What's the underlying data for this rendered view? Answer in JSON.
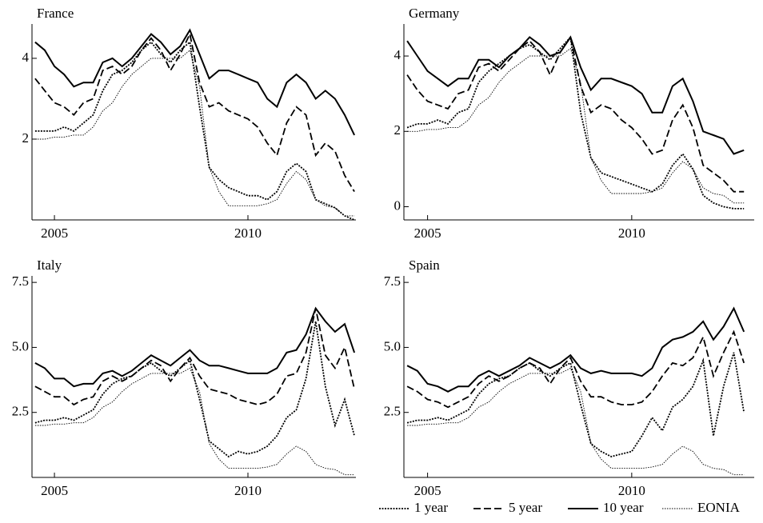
{
  "chart_data": [
    {
      "type": "line",
      "title": "France",
      "x": [
        2004.5,
        2004.75,
        2005,
        2005.25,
        2005.5,
        2005.75,
        2006,
        2006.25,
        2006.5,
        2006.75,
        2007,
        2007.25,
        2007.5,
        2007.75,
        2008,
        2008.25,
        2008.5,
        2008.75,
        2009,
        2009.25,
        2009.5,
        2009.75,
        2010,
        2010.25,
        2010.5,
        2010.75,
        2011,
        2011.25,
        2011.5,
        2011.75,
        2012,
        2012.25,
        2012.5,
        2012.75
      ],
      "xlim": [
        2004.42,
        2012.79
      ],
      "xticks": [
        2005,
        2010
      ],
      "ylim": [
        0,
        4.85
      ],
      "yticks": [
        2,
        4
      ],
      "series": [
        {
          "color": "#000",
          "style": "dotted",
          "values": [
            2.2,
            2.2,
            2.2,
            2.3,
            2.2,
            2.4,
            2.6,
            3.2,
            3.6,
            3.7,
            3.9,
            4.2,
            4.4,
            4.1,
            3.9,
            4.2,
            4.4,
            2.8,
            1.3,
            1.0,
            0.8,
            0.7,
            0.6,
            0.6,
            0.5,
            0.7,
            1.2,
            1.4,
            1.2,
            0.5,
            0.4,
            0.3,
            0.1,
            0.0
          ]
        },
        {
          "color": "#000",
          "style": "dashed",
          "values": [
            3.5,
            3.2,
            2.9,
            2.8,
            2.6,
            2.9,
            3.0,
            3.7,
            3.8,
            3.6,
            3.8,
            4.2,
            4.5,
            4.2,
            3.7,
            4.1,
            4.6,
            3.4,
            2.8,
            2.9,
            2.7,
            2.6,
            2.5,
            2.3,
            1.9,
            1.6,
            2.4,
            2.8,
            2.6,
            1.6,
            1.9,
            1.7,
            1.1,
            0.7
          ]
        },
        {
          "color": "#000",
          "style": "solid",
          "values": [
            4.4,
            4.2,
            3.8,
            3.6,
            3.3,
            3.4,
            3.4,
            3.9,
            4.0,
            3.8,
            4.0,
            4.3,
            4.6,
            4.4,
            4.1,
            4.3,
            4.7,
            4.1,
            3.5,
            3.7,
            3.7,
            3.6,
            3.5,
            3.4,
            3.0,
            2.8,
            3.4,
            3.6,
            3.4,
            3.0,
            3.2,
            3.0,
            2.6,
            2.1
          ]
        },
        {
          "color": "#000",
          "style": "fine-dotted",
          "values": [
            2.0,
            2.0,
            2.05,
            2.05,
            2.1,
            2.1,
            2.3,
            2.7,
            2.9,
            3.3,
            3.6,
            3.8,
            4.0,
            4.0,
            4.0,
            4.0,
            4.2,
            3.3,
            1.3,
            0.7,
            0.35,
            0.35,
            0.35,
            0.35,
            0.4,
            0.5,
            0.9,
            1.2,
            1.0,
            0.5,
            0.35,
            0.3,
            0.1,
            0.1
          ]
        }
      ]
    },
    {
      "type": "line",
      "title": "Germany",
      "x": [
        2004.5,
        2004.75,
        2005,
        2005.25,
        2005.5,
        2005.75,
        2006,
        2006.25,
        2006.5,
        2006.75,
        2007,
        2007.25,
        2007.5,
        2007.75,
        2008,
        2008.25,
        2008.5,
        2008.75,
        2009,
        2009.25,
        2009.5,
        2009.75,
        2010,
        2010.25,
        2010.5,
        2010.75,
        2011,
        2011.25,
        2011.5,
        2011.75,
        2012,
        2012.25,
        2012.5,
        2012.75
      ],
      "xlim": [
        2004.42,
        2013.0
      ],
      "xticks": [
        2005,
        2010
      ],
      "ylim": [
        -0.35,
        4.85
      ],
      "yticks": [
        0,
        2,
        4
      ],
      "series": [
        {
          "color": "#000",
          "style": "dotted",
          "values": [
            2.1,
            2.2,
            2.2,
            2.3,
            2.2,
            2.5,
            2.6,
            3.3,
            3.6,
            3.8,
            4.0,
            4.2,
            4.3,
            4.1,
            3.9,
            4.2,
            4.5,
            2.5,
            1.3,
            0.9,
            0.8,
            0.7,
            0.6,
            0.5,
            0.4,
            0.6,
            1.1,
            1.4,
            1.0,
            0.3,
            0.1,
            0.0,
            -0.05,
            -0.05
          ]
        },
        {
          "color": "#000",
          "style": "dashed",
          "values": [
            3.5,
            3.1,
            2.8,
            2.7,
            2.6,
            3.0,
            3.1,
            3.7,
            3.8,
            3.6,
            3.9,
            4.2,
            4.4,
            4.1,
            3.5,
            4.1,
            4.5,
            3.2,
            2.5,
            2.7,
            2.6,
            2.3,
            2.1,
            1.8,
            1.4,
            1.5,
            2.3,
            2.7,
            2.1,
            1.1,
            0.9,
            0.7,
            0.4,
            0.4
          ]
        },
        {
          "color": "#000",
          "style": "solid",
          "values": [
            4.4,
            4.0,
            3.6,
            3.4,
            3.2,
            3.4,
            3.4,
            3.9,
            3.9,
            3.7,
            4.0,
            4.2,
            4.5,
            4.3,
            4.0,
            4.1,
            4.5,
            3.7,
            3.1,
            3.4,
            3.4,
            3.3,
            3.2,
            3.0,
            2.5,
            2.5,
            3.2,
            3.4,
            2.8,
            2.0,
            1.9,
            1.8,
            1.4,
            1.5
          ]
        },
        {
          "color": "#000",
          "style": "fine-dotted",
          "values": [
            2.0,
            2.0,
            2.05,
            2.05,
            2.1,
            2.1,
            2.3,
            2.7,
            2.9,
            3.3,
            3.6,
            3.8,
            4.0,
            4.0,
            4.0,
            4.0,
            4.2,
            3.3,
            1.3,
            0.7,
            0.35,
            0.35,
            0.35,
            0.35,
            0.4,
            0.5,
            0.9,
            1.2,
            1.0,
            0.5,
            0.35,
            0.3,
            0.1,
            0.1
          ]
        }
      ]
    },
    {
      "type": "line",
      "title": "Italy",
      "x": [
        2004.5,
        2004.75,
        2005,
        2005.25,
        2005.5,
        2005.75,
        2006,
        2006.25,
        2006.5,
        2006.75,
        2007,
        2007.25,
        2007.5,
        2007.75,
        2008,
        2008.25,
        2008.5,
        2008.75,
        2009,
        2009.25,
        2009.5,
        2009.75,
        2010,
        2010.25,
        2010.5,
        2010.75,
        2011,
        2011.25,
        2011.5,
        2011.75,
        2012,
        2012.25,
        2012.5,
        2012.75
      ],
      "xlim": [
        2004.42,
        2012.79
      ],
      "xticks": [
        2005,
        2010
      ],
      "ylim": [
        0,
        7.75
      ],
      "yticks": [
        2.5,
        {
          "value": 5,
          "label": "5.0"
        },
        7.5
      ],
      "series": [
        {
          "color": "#000",
          "style": "dotted",
          "values": [
            2.1,
            2.2,
            2.2,
            2.3,
            2.2,
            2.4,
            2.6,
            3.2,
            3.6,
            3.8,
            3.9,
            4.2,
            4.4,
            4.1,
            3.9,
            4.2,
            4.5,
            3.0,
            1.4,
            1.1,
            0.8,
            1.0,
            0.9,
            1.0,
            1.2,
            1.6,
            2.3,
            2.6,
            3.8,
            6.0,
            3.5,
            2.0,
            3.0,
            1.6
          ]
        },
        {
          "color": "#000",
          "style": "dashed",
          "values": [
            3.5,
            3.3,
            3.1,
            3.1,
            2.8,
            3.0,
            3.1,
            3.7,
            3.9,
            3.7,
            3.9,
            4.2,
            4.5,
            4.3,
            3.7,
            4.2,
            4.6,
            3.9,
            3.4,
            3.3,
            3.2,
            3.0,
            2.9,
            2.8,
            2.9,
            3.2,
            3.9,
            4.0,
            4.8,
            6.5,
            4.7,
            4.2,
            5.0,
            3.4
          ]
        },
        {
          "color": "#000",
          "style": "solid",
          "values": [
            4.4,
            4.2,
            3.8,
            3.8,
            3.5,
            3.6,
            3.6,
            4.0,
            4.1,
            3.9,
            4.1,
            4.4,
            4.7,
            4.5,
            4.3,
            4.6,
            4.9,
            4.5,
            4.3,
            4.3,
            4.2,
            4.1,
            4.0,
            4.0,
            4.0,
            4.2,
            4.8,
            4.9,
            5.5,
            6.5,
            6.0,
            5.6,
            5.9,
            4.8
          ]
        },
        {
          "color": "#000",
          "style": "fine-dotted",
          "values": [
            2.0,
            2.0,
            2.05,
            2.05,
            2.1,
            2.1,
            2.3,
            2.7,
            2.9,
            3.3,
            3.6,
            3.8,
            4.0,
            4.0,
            4.0,
            4.0,
            4.2,
            3.3,
            1.3,
            0.7,
            0.35,
            0.35,
            0.35,
            0.35,
            0.4,
            0.5,
            0.9,
            1.2,
            1.0,
            0.5,
            0.35,
            0.3,
            0.1,
            0.1
          ]
        }
      ]
    },
    {
      "type": "line",
      "title": "Spain",
      "legend": "bottom-right",
      "x": [
        2004.5,
        2004.75,
        2005,
        2005.25,
        2005.5,
        2005.75,
        2006,
        2006.25,
        2006.5,
        2006.75,
        2007,
        2007.25,
        2007.5,
        2007.75,
        2008,
        2008.25,
        2008.5,
        2008.75,
        2009,
        2009.25,
        2009.5,
        2009.75,
        2010,
        2010.25,
        2010.5,
        2010.75,
        2011,
        2011.25,
        2011.5,
        2011.75,
        2012,
        2012.25,
        2012.5,
        2012.75
      ],
      "xlim": [
        2004.42,
        2013.0
      ],
      "xticks": [
        2005,
        2010
      ],
      "ylim": [
        0,
        7.75
      ],
      "yticks": [
        2.5,
        {
          "value": 5,
          "label": "5.0"
        },
        7.5
      ],
      "series": [
        {
          "name": "1 year",
          "color": "#000",
          "style": "dotted",
          "values": [
            2.1,
            2.2,
            2.2,
            2.3,
            2.2,
            2.4,
            2.6,
            3.2,
            3.6,
            3.8,
            3.9,
            4.2,
            4.4,
            4.1,
            3.9,
            4.2,
            4.4,
            2.8,
            1.3,
            1.0,
            0.8,
            0.9,
            1.0,
            1.6,
            2.3,
            1.8,
            2.7,
            3.0,
            3.5,
            4.5,
            1.6,
            3.5,
            4.8,
            2.5
          ]
        },
        {
          "name": "5 year",
          "color": "#000",
          "style": "dashed",
          "values": [
            3.5,
            3.3,
            3.0,
            2.9,
            2.7,
            2.9,
            3.1,
            3.6,
            3.9,
            3.7,
            3.9,
            4.2,
            4.4,
            4.2,
            3.6,
            4.2,
            4.6,
            3.7,
            3.1,
            3.1,
            2.9,
            2.8,
            2.8,
            2.9,
            3.3,
            3.9,
            4.4,
            4.3,
            4.6,
            5.4,
            3.9,
            4.8,
            5.6,
            4.4
          ]
        },
        {
          "name": "10 year",
          "color": "#000",
          "style": "solid",
          "values": [
            4.3,
            4.1,
            3.6,
            3.5,
            3.3,
            3.5,
            3.5,
            3.9,
            4.1,
            3.9,
            4.1,
            4.3,
            4.6,
            4.4,
            4.2,
            4.4,
            4.7,
            4.2,
            4.0,
            4.1,
            4.0,
            4.0,
            4.0,
            3.9,
            4.2,
            5.0,
            5.3,
            5.4,
            5.6,
            6.0,
            5.3,
            5.8,
            6.5,
            5.6
          ]
        },
        {
          "name": "EONIA",
          "color": "#000",
          "style": "fine-dotted",
          "values": [
            2.0,
            2.0,
            2.05,
            2.05,
            2.1,
            2.1,
            2.3,
            2.7,
            2.9,
            3.3,
            3.6,
            3.8,
            4.0,
            4.0,
            4.0,
            4.0,
            4.2,
            3.3,
            1.3,
            0.7,
            0.35,
            0.35,
            0.35,
            0.35,
            0.4,
            0.5,
            0.9,
            1.2,
            1.0,
            0.5,
            0.35,
            0.3,
            0.1,
            0.1
          ]
        }
      ]
    }
  ]
}
